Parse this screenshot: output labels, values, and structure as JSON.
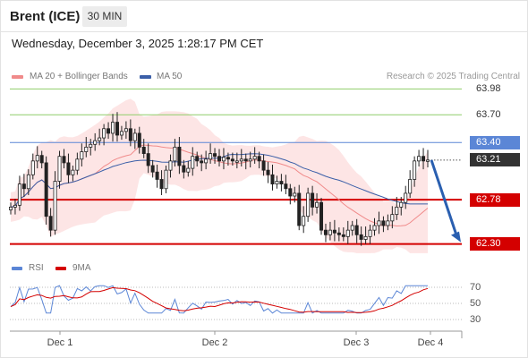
{
  "header": {
    "instrument": "Brent (ICE)",
    "timeframe": "30 MIN",
    "datetime": "Wednesday, December 3, 2025 1:28:17 PM CET"
  },
  "legend": {
    "ma20_label": "MA 20 + Bollinger Bands",
    "ma50_label": "MA 50",
    "credit": "Research © 2025 Trading Central"
  },
  "rsi_legend": {
    "rsi_label": "RSI",
    "ma_label": "9MA"
  },
  "colors": {
    "ma20": "#f08a8a",
    "ma50": "#3b5fa8",
    "bollinger_fill": "#fde0e0",
    "target_line": "#8fce6a",
    "pivot_line": "#5b86d6",
    "support_line": "#d40000",
    "current_price_line": "#333333",
    "arrow": "#2a5fb0",
    "rsi": "#5b86d6",
    "rsi_ma": "#d40000"
  },
  "levels": [
    {
      "value": "63.98",
      "kind": "target"
    },
    {
      "value": "63.70",
      "kind": "target"
    },
    {
      "value": "63.40",
      "kind": "pivot"
    },
    {
      "value": "63.21",
      "kind": "current"
    },
    {
      "value": "62.78",
      "kind": "support"
    },
    {
      "value": "62.30",
      "kind": "support"
    }
  ],
  "rsi_ticks": [
    "70",
    "50",
    "30"
  ],
  "x_ticks": [
    "Dec 1",
    "Dec 2",
    "Dec 3",
    "Dec 4"
  ],
  "chart_data": {
    "type": "candlestick",
    "title": "Brent (ICE)",
    "interval": "30 MIN",
    "x_range": [
      "Dec 1",
      "Dec 4"
    ],
    "y_range": [
      62.18,
      64.12
    ],
    "series": [
      {
        "name": "MA 20 + Bollinger Bands"
      },
      {
        "name": "MA 50"
      }
    ],
    "last_price": 63.21,
    "pivot": 63.4,
    "resistance": [
      63.7,
      63.98
    ],
    "support": [
      62.78,
      62.3
    ],
    "forecast_arrow_target": 62.3,
    "rsi": {
      "ticks": [
        70,
        50,
        30
      ],
      "last_rsi": 70
    },
    "closes": [
      62.7,
      62.72,
      62.95,
      62.9,
      63.05,
      63.2,
      63.26,
      63.18,
      62.6,
      62.45,
      62.98,
      63.25,
      63.18,
      63.05,
      63.1,
      63.22,
      63.3,
      63.35,
      63.38,
      63.42,
      63.45,
      63.55,
      63.5,
      63.62,
      63.48,
      63.52,
      63.55,
      63.42,
      63.5,
      63.35,
      63.28,
      63.15,
      63.08,
      63.0,
      62.9,
      63.1,
      63.2,
      63.35,
      63.15,
      63.08,
      63.12,
      63.25,
      63.2,
      63.18,
      63.22,
      63.28,
      63.25,
      63.2,
      63.24,
      63.22,
      63.2,
      63.2,
      63.22,
      63.2,
      63.22,
      63.25,
      63.2,
      63.1,
      63.05,
      62.95,
      62.98,
      62.95,
      62.9,
      62.82,
      62.85,
      62.5,
      62.6,
      62.85,
      62.7,
      62.75,
      62.45,
      62.4,
      62.45,
      62.42,
      62.4,
      62.38,
      62.45,
      62.5,
      62.4,
      62.35,
      62.38,
      62.45,
      62.5,
      62.55,
      62.5,
      62.55,
      62.62,
      62.7,
      62.75,
      62.85,
      63.0,
      63.2,
      63.25,
      63.2,
      63.21
    ]
  }
}
